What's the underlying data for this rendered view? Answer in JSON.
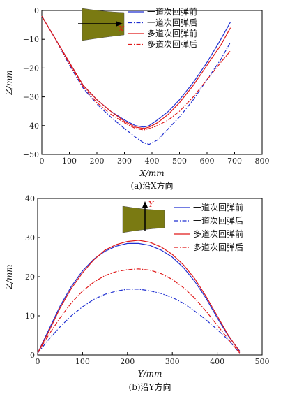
{
  "chart_data": [
    {
      "type": "line",
      "caption": "(a)沿X方向",
      "xlabel": "X/mm",
      "ylabel": "Z/mm",
      "xlim": [
        0,
        800
      ],
      "ylim": [
        -50,
        0
      ],
      "xticks": [
        "0",
        "100",
        "200",
        "300",
        "400",
        "500",
        "600",
        "700",
        "800"
      ],
      "yticks": [
        "0",
        "−10",
        "−20",
        "−30",
        "−40",
        "−50"
      ],
      "legend_position": "top-right",
      "inset_label": "X",
      "series": [
        {
          "name": "一道次回弹前",
          "color": "#1f2fd1",
          "dash": "solid",
          "points": [
            [
              0,
              -2
            ],
            [
              50,
              -10
            ],
            [
              100,
              -18
            ],
            [
              150,
              -26
            ],
            [
              200,
              -31
            ],
            [
              250,
              -35
            ],
            [
              300,
              -38
            ],
            [
              340,
              -40
            ],
            [
              370,
              -40.5
            ],
            [
              390,
              -40
            ],
            [
              420,
              -38
            ],
            [
              460,
              -35
            ],
            [
              500,
              -31
            ],
            [
              550,
              -25
            ],
            [
              600,
              -18
            ],
            [
              650,
              -10
            ],
            [
              685,
              -4
            ]
          ]
        },
        {
          "name": "一道次回弹后",
          "color": "#1f2fd1",
          "dash": "dashdot",
          "points": [
            [
              0,
              -2
            ],
            [
              50,
              -10
            ],
            [
              100,
              -19
            ],
            [
              150,
              -27
            ],
            [
              200,
              -32.5
            ],
            [
              250,
              -37
            ],
            [
              300,
              -41
            ],
            [
              340,
              -44
            ],
            [
              370,
              -46
            ],
            [
              390,
              -46.5
            ],
            [
              420,
              -45
            ],
            [
              460,
              -41
            ],
            [
              500,
              -37
            ],
            [
              550,
              -31
            ],
            [
              600,
              -24
            ],
            [
              650,
              -17
            ],
            [
              685,
              -11
            ]
          ]
        },
        {
          "name": "多道次回弹前",
          "color": "#e01919",
          "dash": "solid",
          "points": [
            [
              0,
              -2
            ],
            [
              50,
              -10
            ],
            [
              100,
              -18
            ],
            [
              150,
              -26
            ],
            [
              200,
              -31
            ],
            [
              250,
              -35
            ],
            [
              300,
              -38.5
            ],
            [
              340,
              -40.5
            ],
            [
              370,
              -41
            ],
            [
              390,
              -40.5
            ],
            [
              420,
              -39
            ],
            [
              460,
              -36
            ],
            [
              500,
              -32
            ],
            [
              550,
              -26
            ],
            [
              600,
              -19
            ],
            [
              650,
              -12
            ],
            [
              685,
              -6
            ]
          ]
        },
        {
          "name": "多道次回弹后",
          "color": "#e01919",
          "dash": "dashdot",
          "points": [
            [
              0,
              -2
            ],
            [
              50,
              -10
            ],
            [
              100,
              -18.5
            ],
            [
              150,
              -26.5
            ],
            [
              200,
              -32
            ],
            [
              250,
              -36
            ],
            [
              300,
              -39
            ],
            [
              340,
              -41
            ],
            [
              370,
              -41.5
            ],
            [
              390,
              -41
            ],
            [
              420,
              -40
            ],
            [
              460,
              -38
            ],
            [
              500,
              -35
            ],
            [
              550,
              -30
            ],
            [
              600,
              -24
            ],
            [
              650,
              -18
            ],
            [
              685,
              -14
            ]
          ]
        }
      ]
    },
    {
      "type": "line",
      "caption": "(b)沿Y方向",
      "xlabel": "Y/mm",
      "ylabel": "Z/mm",
      "xlim": [
        0,
        500
      ],
      "ylim": [
        0,
        40
      ],
      "xticks": [
        "0",
        "100",
        "200",
        "300",
        "400",
        "500"
      ],
      "yticks": [
        "0",
        "10",
        "20",
        "30",
        "40"
      ],
      "legend_position": "top-right",
      "inset_label": "Y",
      "series": [
        {
          "name": "一道次回弹前",
          "color": "#1f2fd1",
          "dash": "solid",
          "points": [
            [
              0,
              0.5
            ],
            [
              25,
              6.5
            ],
            [
              50,
              12.5
            ],
            [
              75,
              17.5
            ],
            [
              100,
              21.5
            ],
            [
              125,
              24.5
            ],
            [
              150,
              26.5
            ],
            [
              175,
              27.8
            ],
            [
              200,
              28.5
            ],
            [
              225,
              28.5
            ],
            [
              250,
              28
            ],
            [
              275,
              26.8
            ],
            [
              300,
              25
            ],
            [
              325,
              22.3
            ],
            [
              350,
              18.8
            ],
            [
              375,
              14.5
            ],
            [
              400,
              9.5
            ],
            [
              425,
              4.8
            ],
            [
              450,
              1
            ]
          ]
        },
        {
          "name": "一道次回弹后",
          "color": "#1f2fd1",
          "dash": "dashdot",
          "points": [
            [
              0,
              0.5
            ],
            [
              25,
              4
            ],
            [
              50,
              7.2
            ],
            [
              75,
              10
            ],
            [
              100,
              12.3
            ],
            [
              125,
              14.2
            ],
            [
              150,
              15.5
            ],
            [
              175,
              16.3
            ],
            [
              200,
              16.8
            ],
            [
              225,
              16.8
            ],
            [
              250,
              16.4
            ],
            [
              275,
              15.7
            ],
            [
              300,
              14.7
            ],
            [
              325,
              13.2
            ],
            [
              350,
              11.2
            ],
            [
              375,
              9
            ],
            [
              400,
              6.5
            ],
            [
              425,
              3.8
            ],
            [
              450,
              0.5
            ]
          ]
        },
        {
          "name": "多道次回弹前",
          "color": "#e01919",
          "dash": "solid",
          "points": [
            [
              0,
              0.5
            ],
            [
              25,
              6
            ],
            [
              50,
              12
            ],
            [
              75,
              17
            ],
            [
              100,
              21
            ],
            [
              125,
              24.3
            ],
            [
              150,
              26.8
            ],
            [
              175,
              28.2
            ],
            [
              200,
              29
            ],
            [
              225,
              29.3
            ],
            [
              250,
              28.8
            ],
            [
              275,
              27.6
            ],
            [
              300,
              25.7
            ],
            [
              325,
              23
            ],
            [
              350,
              19.5
            ],
            [
              375,
              15
            ],
            [
              400,
              10
            ],
            [
              425,
              5
            ],
            [
              450,
              0.8
            ]
          ]
        },
        {
          "name": "多道次回弹后",
          "color": "#e01919",
          "dash": "dashdot",
          "points": [
            [
              0,
              0.5
            ],
            [
              25,
              5.2
            ],
            [
              50,
              9.5
            ],
            [
              75,
              13.3
            ],
            [
              100,
              16.3
            ],
            [
              125,
              18.6
            ],
            [
              150,
              20.3
            ],
            [
              175,
              21.3
            ],
            [
              200,
              21.8
            ],
            [
              225,
              22
            ],
            [
              250,
              21.7
            ],
            [
              275,
              20.8
            ],
            [
              300,
              19.3
            ],
            [
              325,
              17.2
            ],
            [
              350,
              14.5
            ],
            [
              375,
              11.2
            ],
            [
              400,
              7.6
            ],
            [
              425,
              4
            ],
            [
              450,
              0.5
            ]
          ]
        }
      ]
    }
  ]
}
